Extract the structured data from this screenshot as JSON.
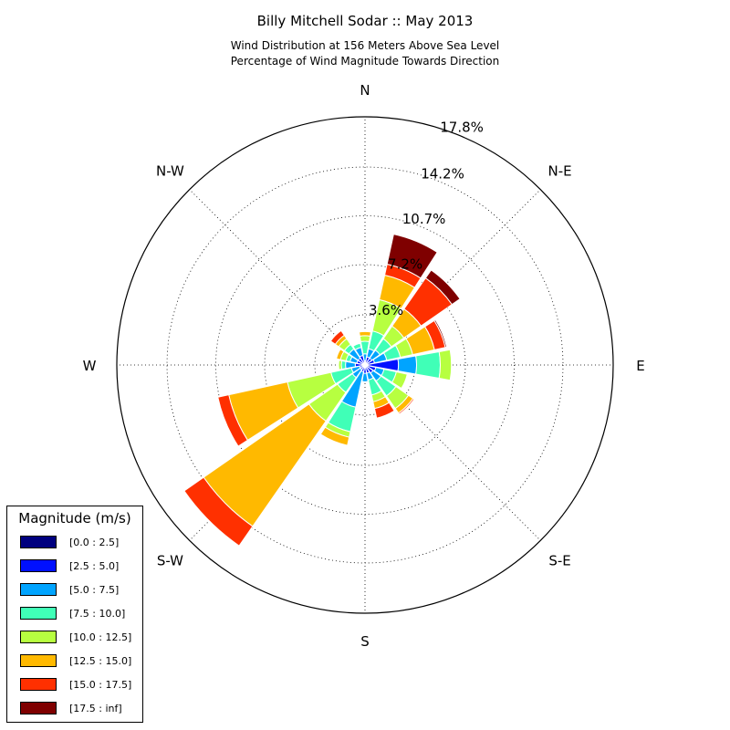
{
  "chart_data": {
    "type": "windrose",
    "title": "Billy Mitchell Sodar :: May 2013",
    "subtitle_line1": "Wind Distribution at 156 Meters Above Sea Level",
    "subtitle_line2": "Percentage of Wind Magnitude Towards Direction",
    "units": "%",
    "rmax": 17.8,
    "radial_ticks": [
      3.6,
      7.2,
      10.7,
      14.2,
      17.8
    ],
    "radial_tick_labels": [
      "3.6%",
      "7.2%",
      "10.7%",
      "14.2%",
      "17.8%"
    ],
    "direction_labels": [
      {
        "label": "N",
        "angle": 0
      },
      {
        "label": "N-E",
        "angle": 45
      },
      {
        "label": "E",
        "angle": 90
      },
      {
        "label": "S-E",
        "angle": 135
      },
      {
        "label": "S",
        "angle": 180
      },
      {
        "label": "S-W",
        "angle": 225
      },
      {
        "label": "W",
        "angle": 270
      },
      {
        "label": "N-W",
        "angle": 315
      }
    ],
    "grid": true,
    "legend_position": "bottom-left",
    "legend_title": "Magnitude (m/s)",
    "bins": [
      {
        "label": "[0.0 : 2.5]",
        "color": "#00007f"
      },
      {
        "label": "[2.5 : 5.0]",
        "color": "#0010ff"
      },
      {
        "label": "[5.0 : 7.5]",
        "color": "#00a4ff"
      },
      {
        "label": "[7.5 : 10.0]",
        "color": "#40ffb7"
      },
      {
        "label": "[10.0 : 12.5]",
        "color": "#b7ff40"
      },
      {
        "label": "[12.5 : 15.0]",
        "color": "#ffb900"
      },
      {
        "label": "[15.0 : 17.5]",
        "color": "#ff3000"
      },
      {
        "label": "[17.5 : inf]",
        "color": "#7f0000"
      }
    ],
    "sectors": [
      {
        "direction": 0,
        "values": [
          0.0,
          0.3,
          0.5,
          0.9,
          0.4,
          0.3,
          0.0,
          0.0
        ]
      },
      {
        "direction": 22.5,
        "values": [
          0.1,
          0.5,
          0.6,
          1.3,
          2.3,
          1.8,
          0.8,
          2.2
        ]
      },
      {
        "direction": 45,
        "values": [
          0.1,
          0.5,
          0.7,
          1.0,
          1.1,
          1.5,
          2.7,
          0.7
        ]
      },
      {
        "direction": 67.5,
        "values": [
          0.1,
          0.6,
          0.9,
          1.0,
          0.9,
          1.6,
          0.8,
          0.1
        ]
      },
      {
        "direction": 90,
        "values": [
          0.1,
          2.3,
          1.3,
          1.7,
          0.8,
          0.0,
          0.0,
          0.0
        ]
      },
      {
        "direction": 112.5,
        "values": [
          0.1,
          0.7,
          0.6,
          0.9,
          0.8,
          0.0,
          0.0,
          0.0
        ]
      },
      {
        "direction": 135,
        "values": [
          0.1,
          0.6,
          0.7,
          1.3,
          1.1,
          0.4,
          0.1,
          0.0
        ]
      },
      {
        "direction": 157.5,
        "values": [
          0.1,
          0.5,
          0.5,
          1.1,
          0.5,
          0.5,
          0.7,
          0.0
        ]
      },
      {
        "direction": 180,
        "values": [
          0.1,
          0.5,
          0.6,
          0.0,
          0.0,
          0.0,
          0.0,
          0.0
        ]
      },
      {
        "direction": 202.5,
        "values": [
          0.1,
          0.4,
          2.6,
          1.8,
          0.4,
          0.6,
          0.0,
          0.0
        ]
      },
      {
        "direction": 225,
        "values": [
          0.1,
          0.3,
          0.7,
          1.3,
          2.5,
          9.2,
          1.7,
          0.0
        ]
      },
      {
        "direction": 247.5,
        "values": [
          0.1,
          0.3,
          0.6,
          1.5,
          3.2,
          4.3,
          0.8,
          0.0
        ]
      },
      {
        "direction": 270,
        "values": [
          0.1,
          0.6,
          0.7,
          0.3,
          0.2,
          0.0,
          0.0,
          0.0
        ]
      },
      {
        "direction": 292.5,
        "values": [
          0.1,
          0.5,
          0.5,
          0.3,
          0.4,
          0.3,
          0.0,
          0.0
        ]
      },
      {
        "direction": 315,
        "values": [
          0.1,
          0.5,
          0.8,
          0.4,
          0.5,
          0.3,
          0.4,
          0.0
        ]
      },
      {
        "direction": 337.5,
        "values": [
          0.1,
          0.6,
          0.6,
          0.3,
          0.0,
          0.0,
          0.0,
          0.0
        ]
      }
    ]
  }
}
